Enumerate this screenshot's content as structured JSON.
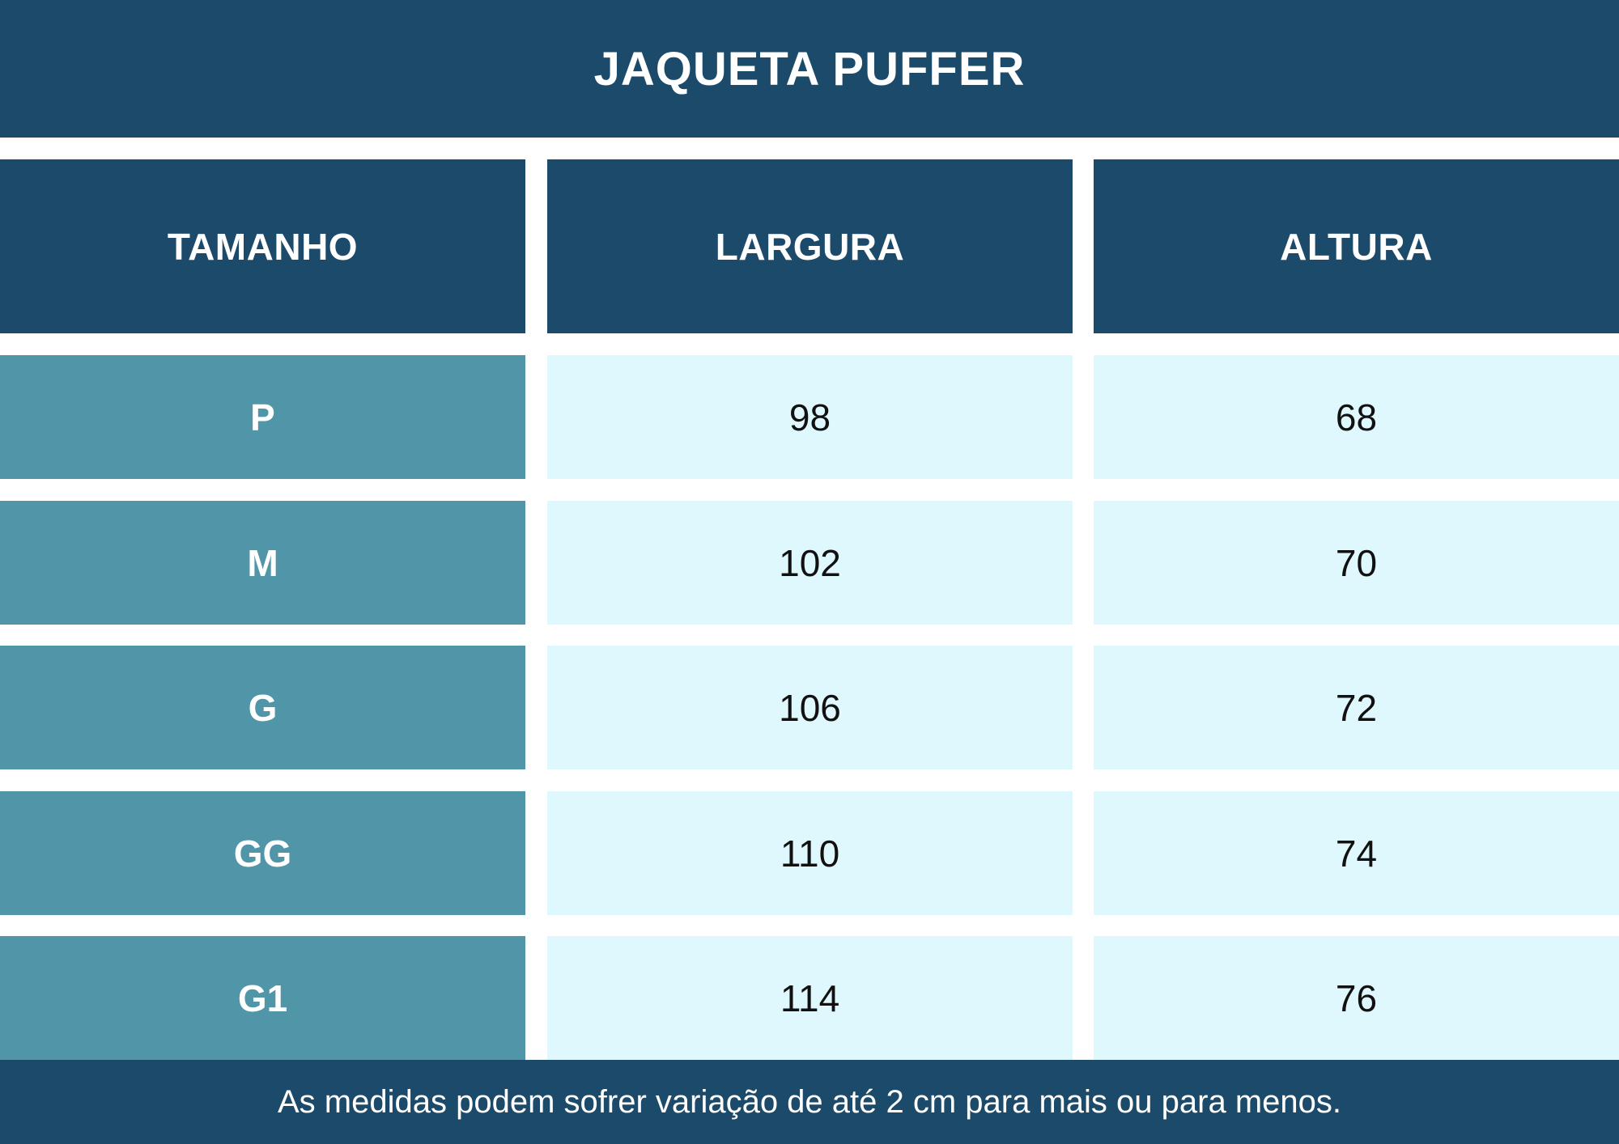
{
  "title": "JAQUETA PUFFER",
  "headers": [
    "TAMANHO",
    "LARGURA",
    "ALTURA"
  ],
  "rows": [
    {
      "size": "P",
      "largura": "98",
      "altura": "68"
    },
    {
      "size": "M",
      "largura": "102",
      "altura": "70"
    },
    {
      "size": "G",
      "largura": "106",
      "altura": "72"
    },
    {
      "size": "GG",
      "largura": "110",
      "altura": "74"
    },
    {
      "size": "G1",
      "largura": "114",
      "altura": "76"
    }
  ],
  "footer": "As medidas podem sofrer variação de até 2 cm para mais ou para menos.",
  "colors": {
    "header_bg": "#1c4a6b",
    "size_bg": "#5195a9",
    "value_bg": "#dff8fd"
  }
}
